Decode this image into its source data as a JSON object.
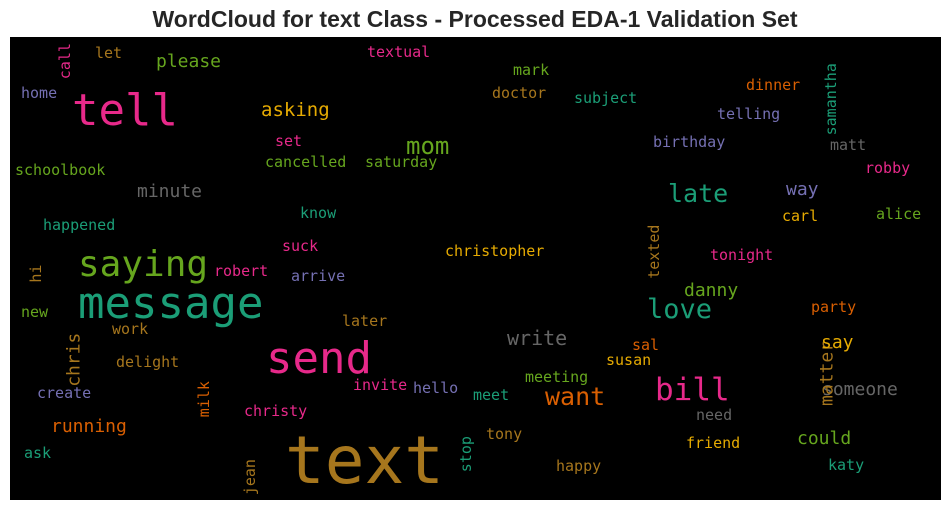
{
  "chart_data": {
    "type": "wordcloud",
    "title": "WordCloud for text Class - Processed EDA-1 Validation Set",
    "words": [
      {
        "text": "text",
        "color": "#a6761d"
      },
      {
        "text": "message",
        "color": "#1b9e77"
      },
      {
        "text": "send",
        "color": "#e7298a"
      },
      {
        "text": "tell",
        "color": "#e7298a"
      },
      {
        "text": "saying",
        "color": "#66a61e"
      },
      {
        "text": "bill",
        "color": "#e7298a"
      },
      {
        "text": "love",
        "color": "#1b9e77"
      },
      {
        "text": "late",
        "color": "#1b9e77"
      },
      {
        "text": "want",
        "color": "#d95f02"
      },
      {
        "text": "mom",
        "color": "#66a61e"
      },
      {
        "text": "write",
        "color": "#666666"
      },
      {
        "text": "someone",
        "color": "#666666"
      },
      {
        "text": "chris",
        "color": "#a6761d"
      },
      {
        "text": "matter",
        "color": "#a6761d"
      },
      {
        "text": "asking",
        "color": "#e6ab02"
      },
      {
        "text": "minute",
        "color": "#666666"
      },
      {
        "text": "please",
        "color": "#66a61e"
      },
      {
        "text": "running",
        "color": "#d95f02"
      },
      {
        "text": "could",
        "color": "#66a61e"
      },
      {
        "text": "way",
        "color": "#7570b3"
      },
      {
        "text": "danny",
        "color": "#66a61e"
      },
      {
        "text": "say",
        "color": "#e6ab02"
      },
      {
        "text": "christopher",
        "color": "#e6ab02"
      },
      {
        "text": "cancelled",
        "color": "#66a61e"
      },
      {
        "text": "saturday",
        "color": "#66a61e"
      },
      {
        "text": "schoolbook",
        "color": "#66a61e"
      },
      {
        "text": "happened",
        "color": "#1b9e77"
      },
      {
        "text": "robert",
        "color": "#e7298a"
      },
      {
        "text": "textual",
        "color": "#e7298a"
      },
      {
        "text": "subject",
        "color": "#1b9e77"
      },
      {
        "text": "doctor",
        "color": "#a6761d"
      },
      {
        "text": "mark",
        "color": "#66a61e"
      },
      {
        "text": "dinner",
        "color": "#d95f02"
      },
      {
        "text": "samantha",
        "color": "#1b9e77"
      },
      {
        "text": "telling",
        "color": "#7570b3"
      },
      {
        "text": "birthday",
        "color": "#7570b3"
      },
      {
        "text": "matt",
        "color": "#666666"
      },
      {
        "text": "robby",
        "color": "#e7298a"
      },
      {
        "text": "alice",
        "color": "#66a61e"
      },
      {
        "text": "carl",
        "color": "#e6ab02"
      },
      {
        "text": "tonight",
        "color": "#e7298a"
      },
      {
        "text": "texted",
        "color": "#a6761d"
      },
      {
        "text": "party",
        "color": "#d95f02"
      },
      {
        "text": "sal",
        "color": "#d95f02"
      },
      {
        "text": "susan",
        "color": "#e6ab02"
      },
      {
        "text": "meeting",
        "color": "#66a61e"
      },
      {
        "text": "meet",
        "color": "#1b9e77"
      },
      {
        "text": "hello",
        "color": "#7570b3"
      },
      {
        "text": "invite",
        "color": "#e7298a"
      },
      {
        "text": "later",
        "color": "#a6761d"
      },
      {
        "text": "arrive",
        "color": "#7570b3"
      },
      {
        "text": "suck",
        "color": "#e7298a"
      },
      {
        "text": "know",
        "color": "#1b9e77"
      },
      {
        "text": "set",
        "color": "#e7298a"
      },
      {
        "text": "let",
        "color": "#a6761d"
      },
      {
        "text": "call",
        "color": "#e7298a"
      },
      {
        "text": "home",
        "color": "#7570b3"
      },
      {
        "text": "hi",
        "color": "#a6761d"
      },
      {
        "text": "new",
        "color": "#66a61e"
      },
      {
        "text": "work",
        "color": "#a6761d"
      },
      {
        "text": "delight",
        "color": "#a6761d"
      },
      {
        "text": "create",
        "color": "#7570b3"
      },
      {
        "text": "milk",
        "color": "#d95f02"
      },
      {
        "text": "christy",
        "color": "#e7298a"
      },
      {
        "text": "ask",
        "color": "#1b9e77"
      },
      {
        "text": "jean",
        "color": "#a6761d"
      },
      {
        "text": "stop",
        "color": "#1b9e77"
      },
      {
        "text": "tony",
        "color": "#a6761d"
      },
      {
        "text": "happy",
        "color": "#a6761d"
      },
      {
        "text": "friend",
        "color": "#e6ab02"
      },
      {
        "text": "need",
        "color": "#666666"
      },
      {
        "text": "katy",
        "color": "#1b9e77"
      }
    ]
  }
}
